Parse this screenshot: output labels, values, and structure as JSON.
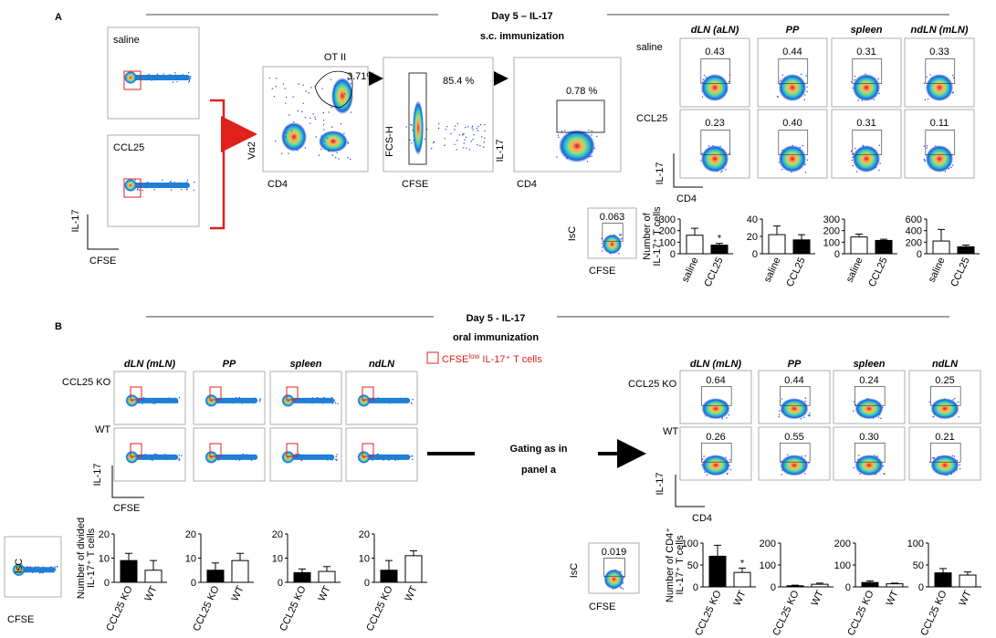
{
  "panel_a": {
    "label": "A",
    "title": "Day 5 – IL-17",
    "subtitle": "s.c. immunization",
    "cfse_rows": [
      "saline",
      "CCL25"
    ],
    "cfse_x_label": "CFSE",
    "cfse_y_label": "IL-17",
    "gate1": {
      "title": "OT II",
      "gate": "3.71%",
      "x_label": "CD4",
      "y_label": "Vα2"
    },
    "gate2": {
      "gate": "85.4 %",
      "x_label": "CFSE",
      "y_label": "FCS-H"
    },
    "gate3": {
      "gate": "0.78 %",
      "x_label": "CD4",
      "y_label": "IL-17"
    },
    "tissues": [
      "dLN (aLN)",
      "PP",
      "spleen",
      "ndLN (mLN)"
    ],
    "rows": [
      "saline",
      "CCL25"
    ],
    "gates": [
      [
        "0.43",
        "0.44",
        "0.31",
        "0.33"
      ],
      [
        "0.23",
        "0.40",
        "0.31",
        "0.11"
      ]
    ],
    "x_label": "CD4",
    "y_label": "IL-17",
    "isc": {
      "label": "IsC",
      "gate": "0.063",
      "x_label": "CFSE"
    }
  },
  "panel_b": {
    "label": "B",
    "title": "Day 5 - IL-17",
    "subtitle": "oral immunization",
    "left_tissues": [
      "dLN (mLN)",
      "PP",
      "spleen",
      "ndLN"
    ],
    "left_rows": [
      "CCL25 KO",
      "WT"
    ],
    "left_x_label": "CFSE",
    "left_y_label": "IL-17",
    "legend": [
      "CFSE",
      "low",
      " IL-17⁺ T cells"
    ],
    "middle": [
      "Gating as in",
      "panel a"
    ],
    "right_tissues": [
      "dLN (mLN)",
      "PP",
      "spleen",
      "ndLN"
    ],
    "right_rows": [
      "CCL25 KO",
      "WT"
    ],
    "right_gates": [
      [
        "0.64",
        "0.44",
        "0.24",
        "0.25"
      ],
      [
        "0.26",
        "0.55",
        "0.30",
        "0.21"
      ]
    ],
    "right_x_label": "CD4",
    "right_y_label": "IL-17",
    "isc_left": {
      "label": "IsC",
      "x_label": "CFSE"
    },
    "isc_right": {
      "label": "IsC",
      "gate": "0.019",
      "x_label": "CFSE"
    }
  },
  "chart_data": [
    {
      "type": "bar",
      "y_label": [
        "Number of",
        "IL-17⁺ T cells"
      ],
      "categories": [
        "saline",
        "CCL25"
      ],
      "values": [
        160,
        75
      ],
      "errors": [
        60,
        15
      ],
      "colors": [
        "#ffffff",
        "#000000"
      ],
      "significance": [
        null,
        "*"
      ],
      "ylim": [
        0,
        300
      ],
      "yticks": [
        0,
        100,
        200,
        300
      ]
    },
    {
      "type": "bar",
      "categories": [
        "saline",
        "CCL25"
      ],
      "values": [
        22,
        16
      ],
      "errors": [
        10,
        6
      ],
      "colors": [
        "#ffffff",
        "#000000"
      ],
      "ylim": [
        0,
        40
      ],
      "yticks": [
        0,
        20,
        40
      ]
    },
    {
      "type": "bar",
      "categories": [
        "saline",
        "CCL25"
      ],
      "values": [
        145,
        115
      ],
      "errors": [
        25,
        10
      ],
      "colors": [
        "#ffffff",
        "#000000"
      ],
      "ylim": [
        0,
        300
      ],
      "yticks": [
        0,
        100,
        200,
        300
      ]
    },
    {
      "type": "bar",
      "categories": [
        "saline",
        "CCL25"
      ],
      "values": [
        220,
        120
      ],
      "errors": [
        200,
        30
      ],
      "colors": [
        "#ffffff",
        "#000000"
      ],
      "ylim": [
        0,
        600
      ],
      "yticks": [
        0,
        200,
        400,
        600
      ]
    },
    {
      "type": "bar",
      "y_label": [
        "Number of divided",
        "IL-17⁺ T cells"
      ],
      "categories": [
        "CCL25 KO",
        "WT"
      ],
      "values": [
        9,
        5
      ],
      "errors": [
        3,
        4
      ],
      "colors": [
        "#000000",
        "#ffffff"
      ],
      "ylim": [
        0,
        20
      ],
      "yticks": [
        0,
        10,
        20
      ]
    },
    {
      "type": "bar",
      "categories": [
        "CCL25 KO",
        "WT"
      ],
      "values": [
        5,
        9
      ],
      "errors": [
        3,
        3
      ],
      "colors": [
        "#000000",
        "#ffffff"
      ],
      "ylim": [
        0,
        20
      ],
      "yticks": [
        0,
        10,
        20
      ]
    },
    {
      "type": "bar",
      "categories": [
        "CCL25 KO",
        "WT"
      ],
      "values": [
        4,
        4.5
      ],
      "errors": [
        1.5,
        2
      ],
      "colors": [
        "#000000",
        "#ffffff"
      ],
      "ylim": [
        0,
        20
      ],
      "yticks": [
        0,
        10,
        20
      ]
    },
    {
      "type": "bar",
      "categories": [
        "CCL25 KO",
        "WT"
      ],
      "values": [
        5,
        11
      ],
      "errors": [
        4,
        2
      ],
      "colors": [
        "#000000",
        "#ffffff"
      ],
      "ylim": [
        0,
        20
      ],
      "yticks": [
        0,
        10,
        20
      ]
    },
    {
      "type": "bar",
      "y_label": [
        "Number of CD4⁺",
        "IL-17⁺ T cells"
      ],
      "categories": [
        "CCL25 KO",
        "WT"
      ],
      "values": [
        70,
        33
      ],
      "errors": [
        25,
        10
      ],
      "colors": [
        "#000000",
        "#ffffff"
      ],
      "significance": [
        null,
        "*"
      ],
      "ylim": [
        0,
        100
      ],
      "yticks": [
        0,
        50,
        100
      ]
    },
    {
      "type": "bar",
      "categories": [
        "CCL25 KO",
        "WT"
      ],
      "values": [
        5,
        12
      ],
      "errors": [
        3,
        5
      ],
      "colors": [
        "#000000",
        "#ffffff"
      ],
      "ylim": [
        0,
        200
      ],
      "yticks": [
        0,
        100,
        200
      ]
    },
    {
      "type": "bar",
      "categories": [
        "CCL25 KO",
        "WT"
      ],
      "values": [
        20,
        14
      ],
      "errors": [
        7,
        3
      ],
      "colors": [
        "#000000",
        "#ffffff"
      ],
      "ylim": [
        0,
        200
      ],
      "yticks": [
        0,
        100,
        200
      ]
    },
    {
      "type": "bar",
      "categories": [
        "CCL25 KO",
        "WT"
      ],
      "values": [
        32,
        27
      ],
      "errors": [
        10,
        7
      ],
      "colors": [
        "#000000",
        "#ffffff"
      ],
      "ylim": [
        0,
        100
      ],
      "yticks": [
        0,
        50,
        100
      ]
    }
  ]
}
